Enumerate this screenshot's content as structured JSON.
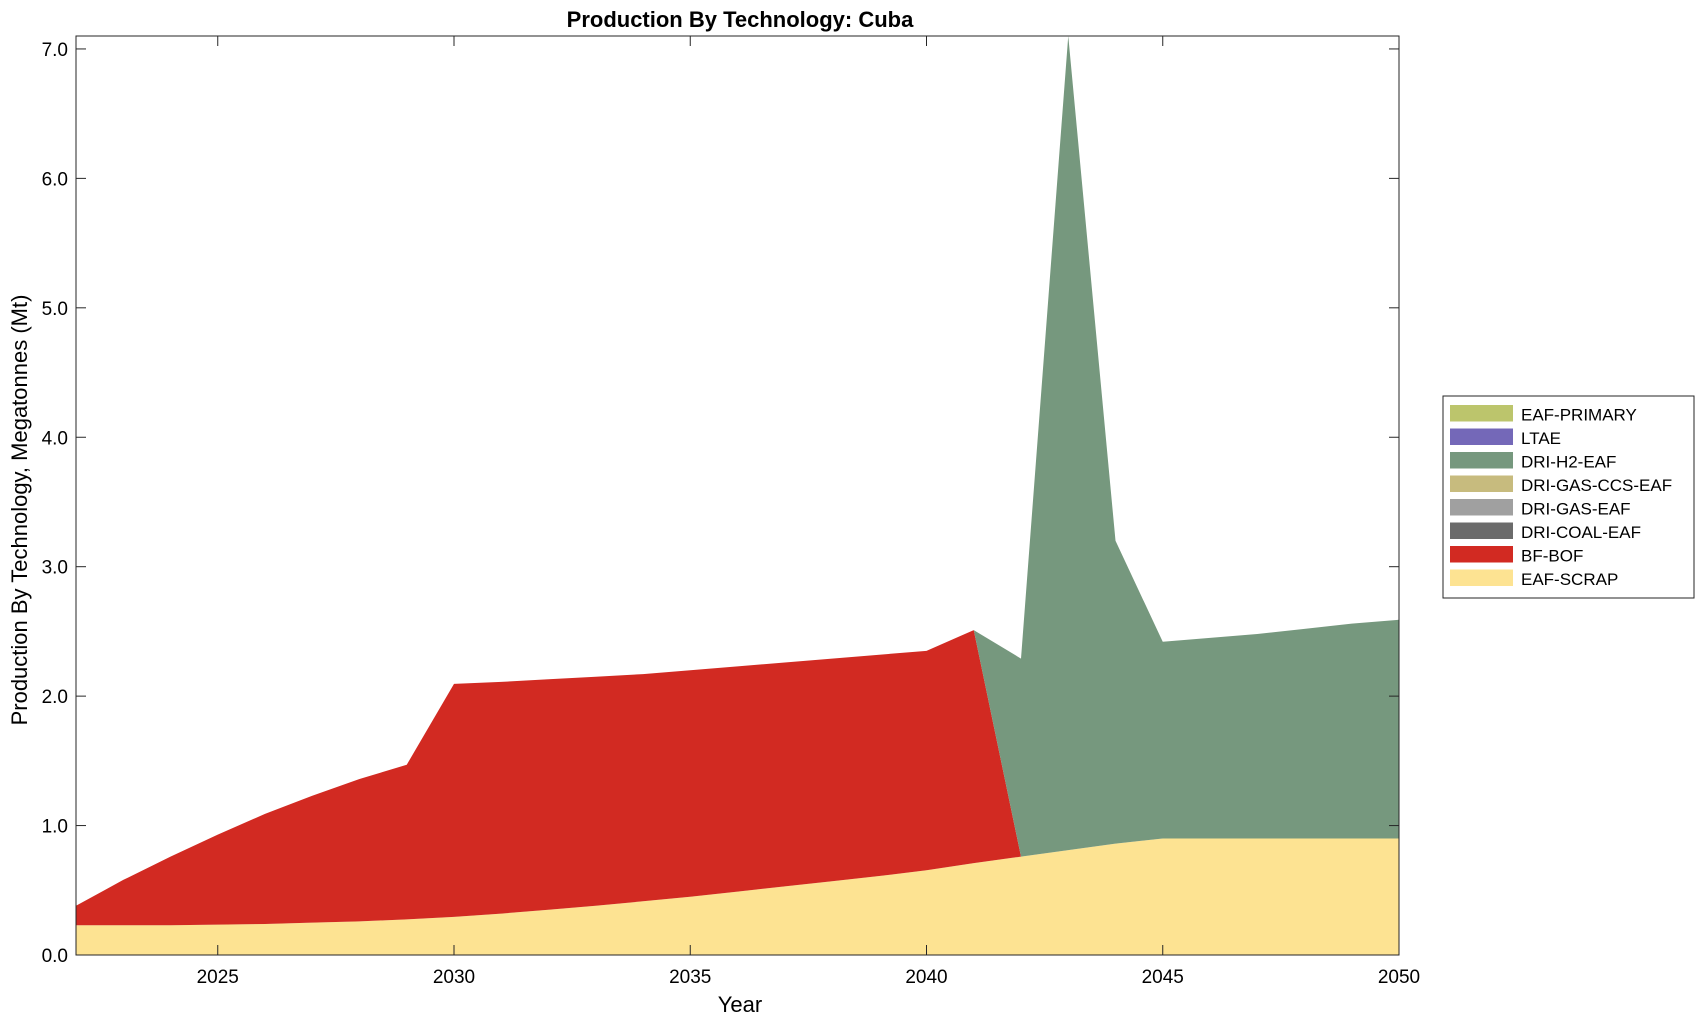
{
  "chart_data": {
    "type": "area",
    "stacked": true,
    "title": "Production By Technology: Cuba",
    "xlabel": "Year",
    "ylabel": "Production By Technology, Megatonnes (Mt)",
    "xlim": [
      2022,
      2050
    ],
    "ylim": [
      0,
      7.1
    ],
    "xticks": [
      2025,
      2030,
      2035,
      2040,
      2045,
      2050
    ],
    "xtick_labels": [
      "2025",
      "2030",
      "2035",
      "2040",
      "2045",
      "2050"
    ],
    "yticks": [
      0,
      1,
      2,
      3,
      4,
      5,
      6,
      7
    ],
    "ytick_labels": [
      "0.0",
      "1.0",
      "2.0",
      "3.0",
      "4.0",
      "5.0",
      "6.0",
      "7.0"
    ],
    "grid": false,
    "legend_position": "right",
    "x": [
      2022,
      2023,
      2024,
      2025,
      2026,
      2027,
      2028,
      2029,
      2030,
      2031,
      2032,
      2033,
      2034,
      2035,
      2036,
      2037,
      2038,
      2039,
      2040,
      2041,
      2042,
      2043,
      2044,
      2045,
      2046,
      2047,
      2048,
      2049,
      2050
    ],
    "series": [
      {
        "name": "EAF-SCRAP",
        "color": "#fde392",
        "values": [
          0.23,
          0.23,
          0.23,
          0.235,
          0.24,
          0.25,
          0.26,
          0.275,
          0.295,
          0.32,
          0.35,
          0.38,
          0.415,
          0.45,
          0.49,
          0.53,
          0.57,
          0.61,
          0.655,
          0.71,
          0.76,
          0.81,
          0.86,
          0.9,
          0.9,
          0.9,
          0.9,
          0.9,
          0.9
        ]
      },
      {
        "name": "BF-BOF",
        "color": "#d22a22",
        "values": [
          0.15,
          0.35,
          0.53,
          0.695,
          0.85,
          0.98,
          1.1,
          1.195,
          1.8,
          1.79,
          1.78,
          1.77,
          1.755,
          1.75,
          1.74,
          1.73,
          1.72,
          1.71,
          1.695,
          1.8,
          0,
          0,
          0,
          0,
          0,
          0,
          0,
          0,
          0
        ]
      },
      {
        "name": "DRI-COAL-EAF",
        "color": "#6b6b6b",
        "values": [
          0,
          0,
          0,
          0,
          0,
          0,
          0,
          0,
          0,
          0,
          0,
          0,
          0,
          0,
          0,
          0,
          0,
          0,
          0,
          0,
          0,
          0,
          0,
          0,
          0,
          0,
          0,
          0,
          0
        ]
      },
      {
        "name": "DRI-GAS-EAF",
        "color": "#a0a0a0",
        "values": [
          0,
          0,
          0,
          0,
          0,
          0,
          0,
          0,
          0,
          0,
          0,
          0,
          0,
          0,
          0,
          0,
          0,
          0,
          0,
          0,
          0,
          0,
          0,
          0,
          0,
          0,
          0,
          0,
          0
        ]
      },
      {
        "name": "DRI-GAS-CCS-EAF",
        "color": "#c7bb7e",
        "values": [
          0,
          0,
          0,
          0,
          0,
          0,
          0,
          0,
          0,
          0,
          0,
          0,
          0,
          0,
          0,
          0,
          0,
          0,
          0,
          0,
          0,
          0,
          0,
          0,
          0,
          0,
          0,
          0,
          0
        ]
      },
      {
        "name": "DRI-H2-EAF",
        "color": "#76987e",
        "values": [
          0,
          0,
          0,
          0,
          0,
          0,
          0,
          0,
          0,
          0,
          0,
          0,
          0,
          0,
          0,
          0,
          0,
          0,
          0,
          0,
          1.53,
          6.29,
          2.34,
          1.52,
          1.55,
          1.58,
          1.62,
          1.66,
          1.69
        ]
      },
      {
        "name": "LTAE",
        "color": "#7468b8",
        "values": [
          0,
          0,
          0,
          0,
          0,
          0,
          0,
          0,
          0,
          0,
          0,
          0,
          0,
          0,
          0,
          0,
          0,
          0,
          0,
          0,
          0,
          0,
          0,
          0,
          0,
          0,
          0,
          0,
          0
        ]
      },
      {
        "name": "EAF-PRIMARY",
        "color": "#bcc56c",
        "values": [
          0,
          0,
          0,
          0,
          0,
          0,
          0,
          0,
          0,
          0,
          0,
          0,
          0,
          0,
          0,
          0,
          0,
          0,
          0,
          0,
          0,
          0,
          0,
          0,
          0,
          0,
          0,
          0,
          0
        ]
      }
    ],
    "legend_order": [
      "EAF-PRIMARY",
      "LTAE",
      "DRI-H2-EAF",
      "DRI-GAS-CCS-EAF",
      "DRI-GAS-EAF",
      "DRI-COAL-EAF",
      "BF-BOF",
      "EAF-SCRAP"
    ]
  }
}
